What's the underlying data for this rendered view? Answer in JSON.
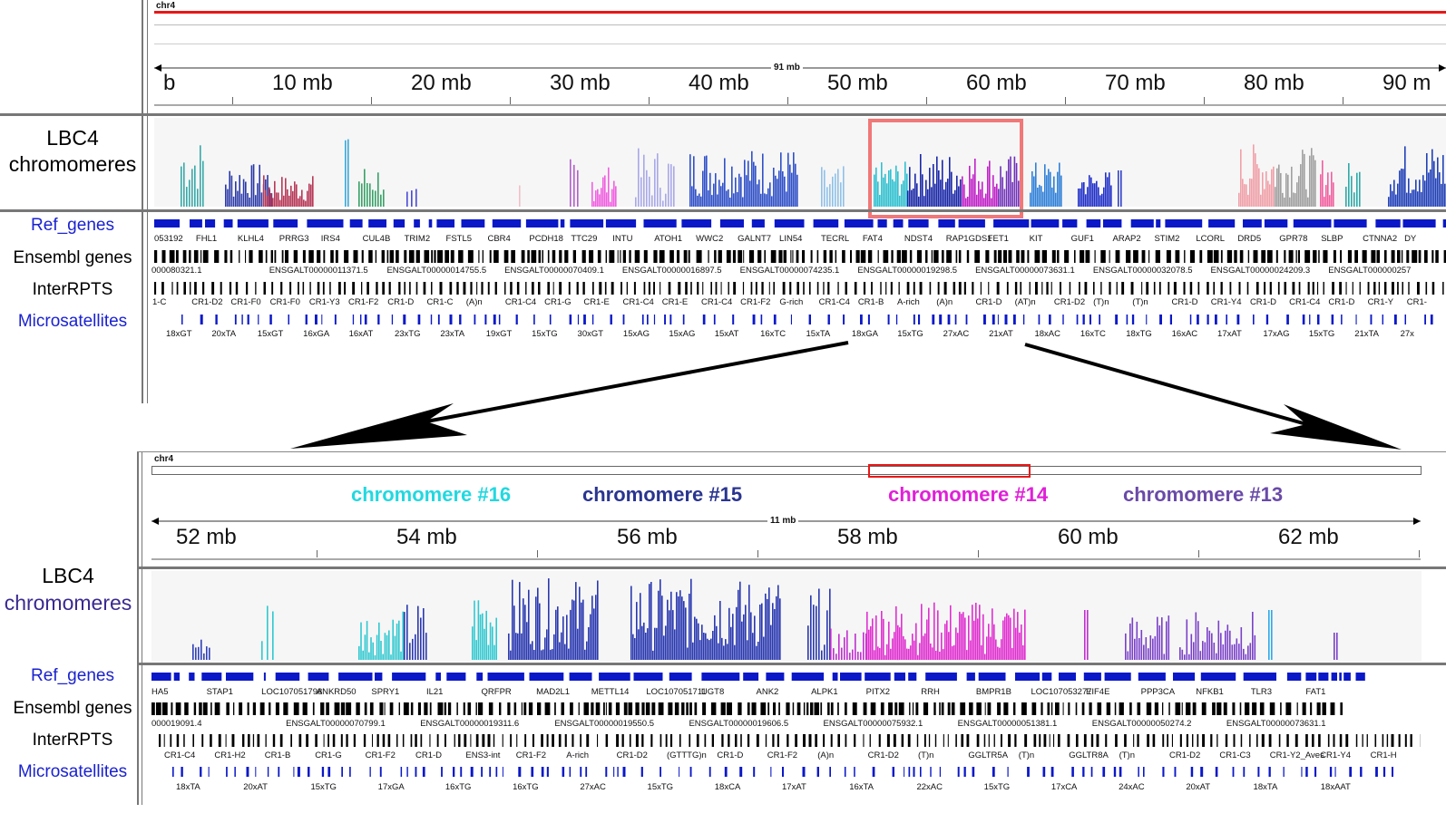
{
  "top": {
    "chrom_name": "chr4",
    "span_label": "91 mb",
    "ruler_labels": [
      "b",
      "10 mb",
      "20 mb",
      "30 mb",
      "40 mb",
      "50 mb",
      "60 mb",
      "70 mb",
      "80 mb",
      "90 m"
    ],
    "track_title_line1": "LBC4",
    "track_title_line2": "chromomeres",
    "track_names": [
      "Ref_genes",
      "Ensembl genes",
      "InterRPTS",
      "Microsatellites"
    ],
    "ref_gene_labels": [
      "053192",
      "FHL1",
      "KLHL4",
      "PRRG3",
      "IRS4",
      "CUL4B",
      "TRIM2",
      "FSTL5",
      "CBR4",
      "PCDH18",
      "TTC29",
      "INTU",
      "ATOH1",
      "WWC2",
      "GALNT7",
      "LIN54",
      "TECRL",
      "FAT4",
      "NDST4",
      "RAP1GDS1",
      "FET1",
      "KIT",
      "GUF1",
      "ARAP2",
      "STIM2",
      "LCORL",
      "DRD5",
      "GPR78",
      "SLBP",
      "CTNNA2",
      "DY"
    ],
    "ensembl_labels": [
      "000080321.1",
      "ENSGALT00000011371.5",
      "ENSGALT00000014755.5",
      "ENSGALT00000070409.1",
      "ENSGALT00000016897.5",
      "ENSGALT00000074235.1",
      "ENSGALT00000019298.5",
      "ENSGALT00000073631.1",
      "ENSGALT00000032078.5",
      "ENSGALT00000024209.3",
      "ENSGALT000000257"
    ],
    "interrpts_labels": [
      "1-C",
      "CR1-D2",
      "CR1-F0",
      "CR1-F0",
      "CR1-Y3",
      "CR1-F2",
      "CR1-D",
      "CR1-C",
      "(A)n",
      "CR1-C4",
      "CR1-G",
      "CR1-E",
      "CR1-C4",
      "CR1-E",
      "CR1-C4",
      "CR1-F2",
      "G-rich",
      "CR1-C4",
      "CR1-B",
      "A-rich",
      "(A)n",
      "CR1-D",
      "(AT)n",
      "CR1-D2",
      "(T)n",
      "(T)n",
      "CR1-D",
      "CR1-Y4",
      "CR1-D",
      "CR1-C4",
      "CR1-D",
      "CR1-Y",
      "CR1-"
    ],
    "microsat_labels": [
      "18xGT",
      "20xTA",
      "15xGT",
      "16xGA",
      "16xAT",
      "23xTG",
      "23xTA",
      "19xGT",
      "15xTG",
      "30xGT",
      "15xAG",
      "15xAG",
      "15xAT",
      "16xTC",
      "15xTA",
      "18xGA",
      "15xTG",
      "27xAC",
      "21xAT",
      "18xAC",
      "16xTC",
      "18xTG",
      "16xAC",
      "17xAT",
      "17xAG",
      "15xTG",
      "21xTA",
      "27x"
    ]
  },
  "bottom": {
    "chrom_name": "chr4",
    "span_label": "11 mb",
    "ruler_labels": [
      "52 mb",
      "54 mb",
      "56 mb",
      "58 mb",
      "60 mb",
      "62 mb"
    ],
    "chromomere_labels": [
      {
        "text": "chromomere #16",
        "color": "#22d8e0"
      },
      {
        "text": "chromomere #15",
        "color": "#2a3590"
      },
      {
        "text": "chromomere #14",
        "color": "#e020d8"
      },
      {
        "text": "chromomere #13",
        "color": "#6a4aa8"
      }
    ],
    "track_title_line1": "LBC4",
    "track_title_line2": "chromomeres",
    "track_names": [
      "Ref_genes",
      "Ensembl genes",
      "InterRPTS",
      "Microsatellites"
    ],
    "ref_gene_labels": [
      "HA5",
      "STAP1",
      "LOC107051798",
      "ANKRD50",
      "SPRY1",
      "IL21",
      "QRFPR",
      "MAD2L1",
      "METTL14",
      "LOC107051711",
      "UGT8",
      "ANK2",
      "ALPK1",
      "PITX2",
      "RRH",
      "BMPR1B",
      "LOC107053277",
      "EIF4E",
      "PPP3CA",
      "NFKB1",
      "TLR3",
      "FAT1"
    ],
    "ensembl_labels": [
      "000019091.4",
      "ENSGALT00000070799.1",
      "ENSGALT00000019311.6",
      "ENSGALT00000019550.5",
      "ENSGALT00000019606.5",
      "ENSGALT00000075932.1",
      "ENSGALT00000051381.1",
      "ENSGALT00000050274.2",
      "ENSGALT00000073631.1"
    ],
    "interrpts_labels": [
      "CR1-C4",
      "CR1-H2",
      "CR1-B",
      "CR1-G",
      "CR1-F2",
      "CR1-D",
      "ENS3-int",
      "CR1-F2",
      "A-rich",
      "CR1-D2",
      "(GTTTG)n",
      "CR1-D",
      "CR1-F2",
      "(A)n",
      "CR1-D2",
      "(T)n",
      "GGLTR5A",
      "(T)n",
      "GGLTR8A",
      "(T)n",
      "CR1-D2",
      "CR1-C3",
      "CR1-Y2_Aves",
      "CR1-Y4",
      "CR1-H"
    ],
    "microsat_labels": [
      "18xTA",
      "20xAT",
      "15xTG",
      "17xGA",
      "16xTG",
      "16xTG",
      "27xAC",
      "15xTG",
      "18xCA",
      "17xAT",
      "16xTA",
      "22xAC",
      "15xTG",
      "17xCA",
      "24xAC",
      "20xAT",
      "18xTA",
      "18xAAT"
    ]
  },
  "colors": {
    "ref_gene_blue": "#0a18c8",
    "track_name_blue": "#1a22d0",
    "highlight_box": "#f07878",
    "region_box": "#e81818"
  }
}
